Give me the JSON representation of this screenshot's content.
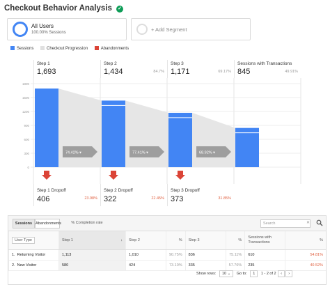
{
  "header": {
    "title": "Checkout Behavior Analysis"
  },
  "segments": [
    {
      "name": "All Users",
      "detail": "100.00% Sessions"
    },
    {
      "name": "+ Add Segment"
    }
  ],
  "legend": [
    {
      "label": "Sessions",
      "color": "#4285f4"
    },
    {
      "label": "Checkout Progression",
      "color": "#e0e0e0"
    },
    {
      "label": "Abandonments",
      "color": "#db4437"
    }
  ],
  "steps": [
    {
      "label": "Step 1",
      "value": "1,693",
      "pct": ""
    },
    {
      "label": "Step 2",
      "value": "1,434",
      "pct": "84.7%"
    },
    {
      "label": "Step 3",
      "value": "1,171",
      "pct": "69.17%"
    },
    {
      "label": "Sessions with Transactions",
      "value": "845",
      "pct": "49.91%"
    }
  ],
  "chart_data": {
    "type": "bar",
    "categories": [
      "Step 1",
      "Step 2",
      "Step 3",
      "Sessions with Transactions"
    ],
    "values": [
      1693,
      1434,
      1171,
      845
    ],
    "y_ticks": [
      "0",
      "300",
      "600",
      "900",
      "1200",
      "1500",
      "1800"
    ],
    "ylim": [
      0,
      1800
    ],
    "progression": [
      "74.42%",
      "77.41%",
      "68.92%"
    ],
    "grid": true
  },
  "dropoffs": [
    {
      "label": "Step 1 Dropoff",
      "value": "406",
      "pct": "23.98%"
    },
    {
      "label": "Step 2 Dropoff",
      "value": "322",
      "pct": "22.45%"
    },
    {
      "label": "Step 3 Dropoff",
      "value": "373",
      "pct": "31.85%"
    }
  ],
  "table": {
    "toolbar": {
      "sessions": "Sessions",
      "abandonments": "Abandonments",
      "completion": "% Completion rate",
      "search_placeholder": "Search",
      "clear": "✕"
    },
    "headers": {
      "dimension": "User Type",
      "step1": "Step 1",
      "step2": "Step 2",
      "pct": "%",
      "step3": "Step 3",
      "transactions": "Sessions with Transactions"
    },
    "rows": [
      {
        "index": "1.",
        "type": "Returning Visitor",
        "step1": "1,113",
        "step2": "1,010",
        "p2": "90.75%",
        "step3": "836",
        "p3": "75.11%",
        "tx": "610",
        "p4": "54.81%"
      },
      {
        "index": "2.",
        "type": "New Visitor",
        "step1": "580",
        "step2": "424",
        "p2": "73.10%",
        "step3": "335",
        "p3": "57.76%",
        "tx": "235",
        "p4": "40.52%"
      }
    ],
    "footer": {
      "show_rows_label": "Show rows:",
      "show_rows": "10",
      "goto_label": "Go to:",
      "goto": "1",
      "range": "1 - 2 of 2"
    }
  }
}
